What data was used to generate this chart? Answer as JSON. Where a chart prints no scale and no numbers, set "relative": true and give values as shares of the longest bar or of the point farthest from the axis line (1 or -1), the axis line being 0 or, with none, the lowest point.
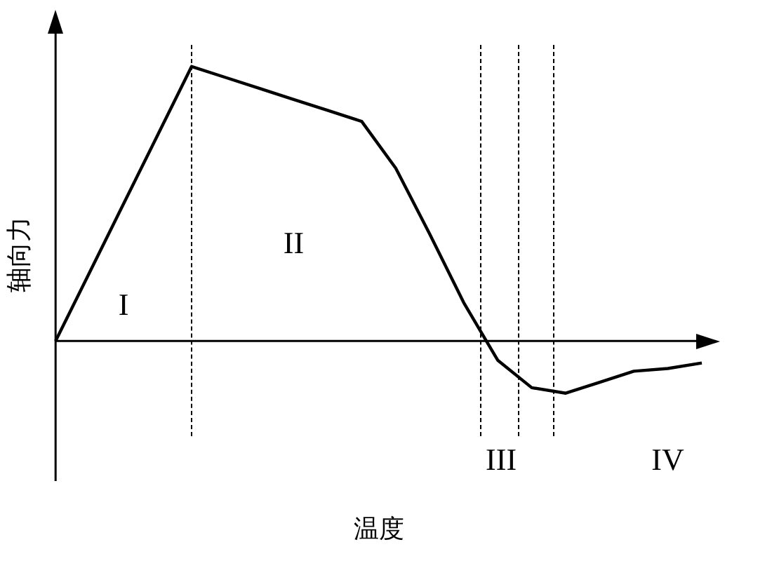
{
  "chart_data": {
    "type": "line",
    "relative": true,
    "xlabel": "温度",
    "ylabel": "轴向力",
    "grid": false,
    "legend": false,
    "marker": "none",
    "line_style": "solid",
    "categories": [
      null,
      null,
      null,
      null,
      null,
      null,
      null,
      null,
      null,
      null,
      null,
      null,
      null,
      null,
      null,
      null,
      null,
      null,
      null,
      null
    ],
    "series": [
      {
        "color": "#000000",
        "values": [
          0,
          0.25,
          0.5,
          0.75,
          1,
          0.96,
          0.92,
          0.88,
          0.84,
          0.8,
          0.63,
          0.39,
          0.14,
          -0.07,
          -0.17,
          -0.19,
          -0.15,
          -0.11,
          -0.1,
          -0.08
        ]
      }
    ],
    "annotations": [
      "I",
      "II",
      "III",
      "IV"
    ]
  }
}
